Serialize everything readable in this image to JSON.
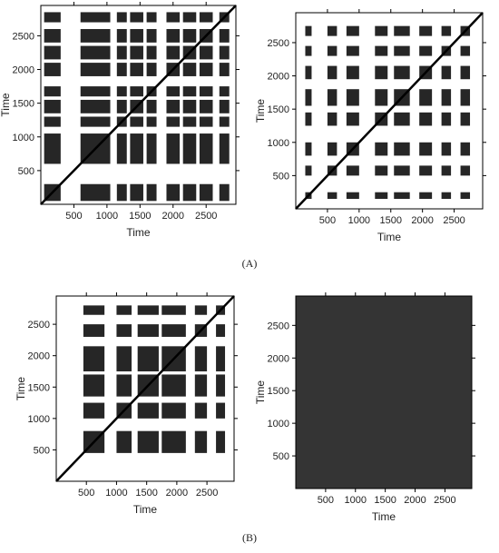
{
  "panel_labels": [
    "(A)",
    "(B)"
  ],
  "chart_data": [
    {
      "type": "recurrence",
      "x_label": "Time",
      "y_label": "Time",
      "xlim": [
        0,
        2950
      ],
      "ylim": [
        0,
        2950
      ],
      "xticks": [
        500,
        1000,
        1500,
        2000,
        2500
      ],
      "yticks": [
        500,
        1000,
        1500,
        2000,
        2500
      ],
      "color": "#000000",
      "diagonal": true,
      "bands": [
        [
          50,
          300
        ],
        [
          600,
          1050
        ],
        [
          1150,
          1300
        ],
        [
          1350,
          1550
        ],
        [
          1600,
          1750
        ],
        [
          1900,
          2100
        ],
        [
          2150,
          2350
        ],
        [
          2400,
          2600
        ],
        [
          2700,
          2850
        ]
      ]
    },
    {
      "type": "recurrence",
      "x_label": "Time",
      "y_label": "Time",
      "xlim": [
        0,
        2950
      ],
      "ylim": [
        0,
        2950
      ],
      "xticks": [
        500,
        1000,
        1500,
        2000,
        2500
      ],
      "yticks": [
        500,
        1000,
        1500,
        2000,
        2500
      ],
      "color": "#000000",
      "diagonal": true,
      "bands": [
        [
          150,
          250
        ],
        [
          500,
          650
        ],
        [
          800,
          1000
        ],
        [
          1250,
          1450
        ],
        [
          1550,
          1800
        ],
        [
          1950,
          2150
        ],
        [
          2300,
          2450
        ],
        [
          2600,
          2750
        ]
      ]
    },
    {
      "type": "recurrence",
      "x_label": "Time",
      "y_label": "Time",
      "xlim": [
        0,
        2950
      ],
      "ylim": [
        0,
        2950
      ],
      "xticks": [
        500,
        1000,
        1500,
        2000,
        2500
      ],
      "yticks": [
        500,
        1000,
        1500,
        2000,
        2500
      ],
      "color": "#000000",
      "diagonal": true,
      "bands": [
        [
          450,
          800
        ],
        [
          1000,
          1250
        ],
        [
          1350,
          1700
        ],
        [
          1750,
          2150
        ],
        [
          2300,
          2500
        ],
        [
          2650,
          2800
        ]
      ]
    },
    {
      "type": "recurrence",
      "x_label": "Time",
      "y_label": "Time",
      "xlim": [
        0,
        2950
      ],
      "ylim": [
        0,
        2950
      ],
      "xticks": [
        500,
        1000,
        1500,
        2000,
        2500
      ],
      "yticks": [
        500,
        1000,
        1500,
        2000,
        2500
      ],
      "color": "#111111",
      "diagonal": false,
      "bands": [
        [
          0,
          2950
        ]
      ]
    }
  ]
}
